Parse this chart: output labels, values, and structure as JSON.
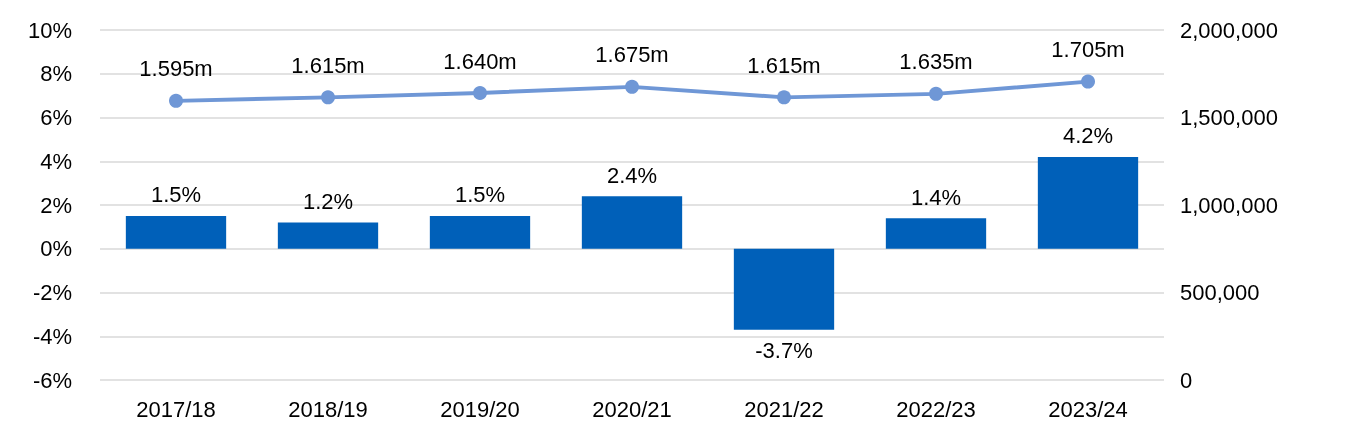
{
  "chart_data": {
    "type": "bar",
    "categories": [
      "2017/18",
      "2018/19",
      "2019/20",
      "2020/21",
      "2021/22",
      "2022/23",
      "2023/24"
    ],
    "series": [
      {
        "color": "#0060b9",
        "values": [
          1.5,
          1.2,
          1.5,
          2.4,
          -3.7,
          1.4,
          4.2
        ],
        "value_labels": [
          "1.5%",
          "1.2%",
          "1.5%",
          "2.4%",
          "-3.7%",
          "1.4%",
          "4.2%"
        ]
      },
      {
        "type": "line",
        "axis": "y2",
        "color": "#6f97d6",
        "marker": "circle",
        "line_style": "solid",
        "values": [
          1595000,
          1615000,
          1640000,
          1675000,
          1615000,
          1635000,
          1705000
        ],
        "value_labels": [
          "1.595m",
          "1.615m",
          "1.640m",
          "1.675m",
          "1.615m",
          "1.635m",
          "1.705m"
        ]
      }
    ],
    "ylim": [
      -6,
      10
    ],
    "yticks": [
      {
        "value": -6,
        "label": "-6%"
      },
      {
        "value": -4,
        "label": "-4%"
      },
      {
        "value": -2,
        "label": "-2%"
      },
      {
        "value": 0,
        "label": "0%"
      },
      {
        "value": 2,
        "label": "2%"
      },
      {
        "value": 4,
        "label": "4%"
      },
      {
        "value": 6,
        "label": "6%"
      },
      {
        "value": 8,
        "label": "8%"
      },
      {
        "value": 10,
        "label": "10%"
      }
    ],
    "y2lim": [
      0,
      2000000
    ],
    "y2ticks": [
      0,
      {
        "value": 500000,
        "label": "500,000"
      },
      {
        "value": 1000000,
        "label": "1,000,000"
      },
      {
        "value": 1500000,
        "label": "1,500,000"
      },
      {
        "value": 2000000,
        "label": "2,000,000"
      }
    ],
    "grid": "y"
  }
}
